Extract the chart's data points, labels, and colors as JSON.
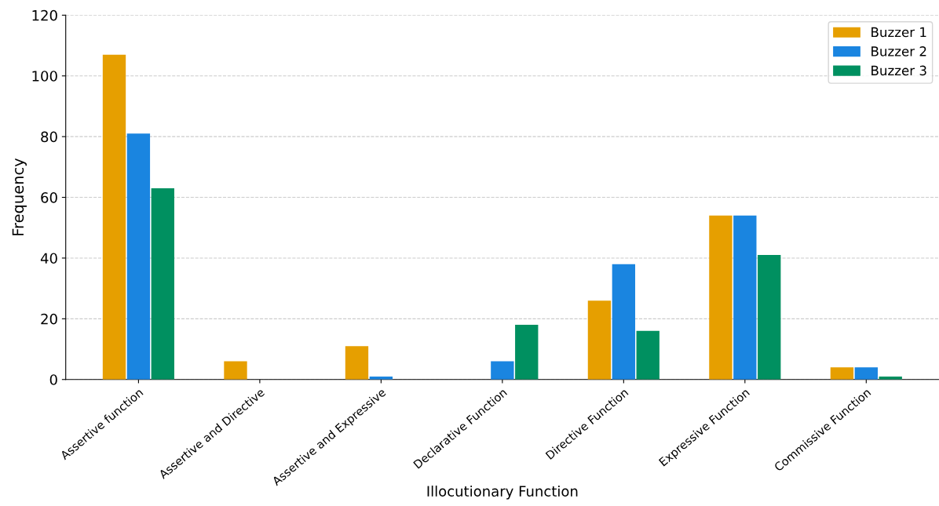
{
  "chart_data": {
    "type": "bar",
    "xlabel": "Illocutionary Function",
    "ylabel": "Frequency",
    "categories": [
      "Assertive function",
      "Assertive and Directive",
      "Assertive and Expressive",
      "Declarative Function",
      "Directive Function",
      "Expressive Function",
      "Commissive Function"
    ],
    "series": [
      {
        "name": "Buzzer 1",
        "color": "#e69f00",
        "values": [
          107,
          6,
          11,
          0,
          26,
          54,
          4
        ]
      },
      {
        "name": "Buzzer 2",
        "color": "#1a85e0",
        "values": [
          81,
          0,
          1,
          6,
          38,
          54,
          4
        ]
      },
      {
        "name": "Buzzer 3",
        "color": "#009060",
        "values": [
          63,
          0,
          0,
          18,
          16,
          41,
          1
        ]
      }
    ],
    "ylim": [
      0,
      120
    ],
    "yticks": [
      0,
      20,
      40,
      60,
      80,
      100,
      120
    ],
    "grid": "y",
    "legend": "top right"
  }
}
